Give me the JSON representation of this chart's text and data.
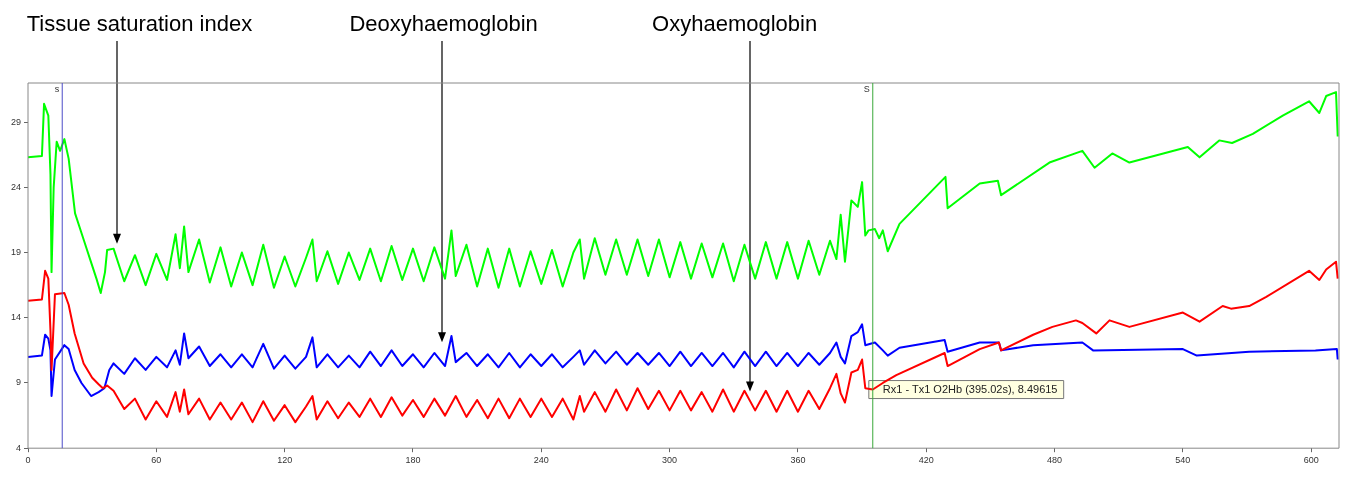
{
  "chart_data": {
    "type": "line",
    "xlim": [
      0,
      613
    ],
    "ylim": [
      4,
      32
    ],
    "xticks": [
      0,
      60,
      120,
      180,
      240,
      300,
      360,
      420,
      480,
      540,
      600
    ],
    "yticks": [
      4,
      9,
      14,
      19,
      24,
      29
    ],
    "series": [
      {
        "color": "#00ff00",
        "x": [
          0,
          6.5,
          7.5,
          9.5,
          10.5,
          11,
          12,
          13.4,
          15,
          17,
          19,
          22,
          26,
          29,
          32,
          34,
          36,
          37,
          40,
          45,
          50,
          55,
          60,
          65,
          69,
          71,
          73,
          75,
          80,
          85,
          90,
          95,
          100,
          105,
          110,
          115,
          120,
          125,
          130,
          133,
          135,
          140,
          145,
          150,
          155,
          160,
          165,
          170,
          175,
          180,
          185,
          190,
          195,
          198,
          200,
          205,
          210,
          215,
          220,
          225,
          230,
          235,
          240,
          245,
          250,
          255,
          258,
          260,
          265,
          270,
          275,
          280,
          285,
          290,
          295,
          300,
          305,
          310,
          315,
          320,
          325,
          330,
          335,
          340,
          345,
          350,
          355,
          360,
          365,
          370,
          375,
          378,
          380,
          382,
          385,
          388,
          390,
          391.5,
          393,
          396,
          398,
          399.7,
          402,
          407.5,
          429,
          430,
          445,
          453.5,
          455,
          477.6,
          493,
          498.7,
          507,
          515,
          542.3,
          547.8,
          557,
          563,
          572.7,
          586.7,
          599,
          603.8,
          607,
          611.6,
          612.4
        ],
        "values": [
          26.3,
          26.4,
          30.4,
          29.5,
          25,
          17.5,
          24,
          27.5,
          26.8,
          27.7,
          26.2,
          22.0,
          20.0,
          18.5,
          17.0,
          15.9,
          17.5,
          19.2,
          19.3,
          16.8,
          18.8,
          16.5,
          18.9,
          16.9,
          20.4,
          17.8,
          21.0,
          17.5,
          20.0,
          16.7,
          19.4,
          16.4,
          19.0,
          16.5,
          19.6,
          16.3,
          18.7,
          16.4,
          18.6,
          20.0,
          16.8,
          19.1,
          16.6,
          19.0,
          16.9,
          19.3,
          16.8,
          19.5,
          16.9,
          19.3,
          16.8,
          19.4,
          17.0,
          20.7,
          17.2,
          19.6,
          16.4,
          19.3,
          16.3,
          19.3,
          16.4,
          19.1,
          16.6,
          19.2,
          16.4,
          19.0,
          20.0,
          17.0,
          20.1,
          17.3,
          20.0,
          17.3,
          20.0,
          17.2,
          20.0,
          17.1,
          19.8,
          17.0,
          19.7,
          17.1,
          19.7,
          16.8,
          19.6,
          17.0,
          19.8,
          17.0,
          19.8,
          17.0,
          19.9,
          17.3,
          19.9,
          18.5,
          21.9,
          18.3,
          23.0,
          22.5,
          24.4,
          20.3,
          20.7,
          20.8,
          20.1,
          20.7,
          19.1,
          21.2,
          24.8,
          22.4,
          24.3,
          24.5,
          23.4,
          25.9,
          26.8,
          25.5,
          26.6,
          25.9,
          27.1,
          26.3,
          27.6,
          27.4,
          28.1,
          29.5,
          30.6,
          29.7,
          31.0,
          31.3,
          27.9
        ]
      },
      {
        "color": "#ff0000",
        "x": [
          0,
          6.5,
          8,
          9.5,
          10.5,
          11,
          12.6,
          17,
          19,
          21.8,
          26,
          30,
          33,
          35,
          37,
          40,
          45,
          50,
          55,
          60,
          65,
          69,
          71,
          73,
          75,
          80,
          85,
          90,
          95,
          100,
          105,
          110,
          115,
          120,
          125,
          130,
          133,
          135,
          140,
          145,
          150,
          155,
          160,
          165,
          170,
          175,
          180,
          185,
          190,
          195,
          200,
          205,
          210,
          215,
          220,
          225,
          230,
          235,
          240,
          245,
          250,
          255,
          258,
          260,
          265,
          270,
          275,
          280,
          285,
          290,
          295,
          300,
          305,
          310,
          315,
          320,
          325,
          330,
          335,
          340,
          345,
          350,
          355,
          360,
          365,
          370,
          375,
          378,
          380,
          382,
          385,
          388,
          390,
          391.5,
          395,
          399.7,
          406,
          428.6,
          430,
          445,
          454,
          455,
          470,
          479,
          490,
          493,
          499.5,
          505.7,
          515,
          540,
          547.8,
          558.6,
          562.5,
          571,
          579,
          599,
          603.8,
          607,
          611.6,
          612.4
        ],
        "values": [
          15.3,
          15.4,
          17.6,
          17.0,
          13.0,
          10.0,
          15.8,
          15.9,
          15.0,
          12.8,
          10.5,
          9.4,
          8.9,
          8.6,
          8.8,
          8.4,
          7.0,
          7.8,
          6.2,
          7.6,
          6.4,
          8.3,
          6.8,
          8.5,
          6.6,
          7.8,
          6.2,
          7.5,
          6.2,
          7.5,
          6.0,
          7.6,
          6.1,
          7.3,
          6.0,
          7.2,
          8.0,
          6.2,
          7.6,
          6.3,
          7.5,
          6.4,
          7.8,
          6.4,
          7.9,
          6.5,
          7.7,
          6.4,
          7.8,
          6.5,
          8.0,
          6.4,
          7.7,
          6.3,
          7.8,
          6.3,
          7.8,
          6.4,
          7.8,
          6.4,
          7.8,
          6.2,
          8.0,
          6.8,
          8.3,
          6.8,
          8.5,
          6.9,
          8.6,
          7.0,
          8.4,
          6.9,
          8.4,
          6.9,
          8.3,
          6.8,
          8.5,
          6.8,
          8.4,
          6.9,
          8.4,
          6.8,
          8.4,
          6.8,
          8.4,
          7.0,
          8.6,
          9.7,
          8.2,
          7.5,
          9.8,
          10.0,
          10.8,
          8.6,
          8.5,
          9.0,
          9.6,
          11.3,
          10.3,
          11.6,
          12.1,
          11.5,
          12.7,
          13.3,
          13.8,
          13.6,
          12.8,
          13.8,
          13.3,
          14.4,
          13.7,
          14.9,
          14.7,
          14.9,
          15.6,
          17.6,
          16.9,
          17.7,
          18.3,
          17.0
        ]
      },
      {
        "color": "#0000ff",
        "x": [
          0,
          6.5,
          8,
          9.5,
          10.5,
          11,
          12.6,
          17,
          19,
          21.8,
          25,
          29.5,
          33,
          35.7,
          38,
          40,
          45,
          50,
          55,
          60,
          65,
          69,
          71,
          73,
          75,
          80,
          85,
          90,
          95,
          100,
          105,
          110,
          115,
          120,
          125,
          130,
          133,
          135,
          140,
          145,
          150,
          155,
          160,
          165,
          170,
          175,
          180,
          185,
          190,
          195,
          198,
          200,
          205,
          210,
          215,
          220,
          225,
          230,
          235,
          240,
          245,
          250,
          255,
          258,
          260,
          265,
          270,
          275,
          280,
          285,
          290,
          295,
          300,
          305,
          310,
          315,
          320,
          325,
          330,
          335,
          340,
          345,
          350,
          355,
          360,
          365,
          370,
          375,
          378,
          380,
          382,
          385,
          388,
          390,
          391.5,
          396,
          399.7,
          402,
          407.5,
          428.6,
          430,
          445,
          454,
          455,
          470,
          493,
          498,
          540,
          546.5,
          571,
          602,
          612,
          612.4
        ],
        "values": [
          11.0,
          11.1,
          12.7,
          12.4,
          11.5,
          8.0,
          10.8,
          11.9,
          11.6,
          10.0,
          9.0,
          8.0,
          8.3,
          8.6,
          10.0,
          10.5,
          9.7,
          10.9,
          10.0,
          11.0,
          10.2,
          11.5,
          10.4,
          12.8,
          10.9,
          11.8,
          10.3,
          11.2,
          10.2,
          11.2,
          10.2,
          12.0,
          10.1,
          11.1,
          10.1,
          11.0,
          12.5,
          10.2,
          11.2,
          10.2,
          11.1,
          10.2,
          11.4,
          10.3,
          11.5,
          10.3,
          11.2,
          10.2,
          11.3,
          10.3,
          12.6,
          10.6,
          11.3,
          10.3,
          11.2,
          10.2,
          11.3,
          10.2,
          11.2,
          10.3,
          11.2,
          10.2,
          11.0,
          11.5,
          10.4,
          11.5,
          10.5,
          11.4,
          10.4,
          11.3,
          10.4,
          11.3,
          10.3,
          11.4,
          10.3,
          11.3,
          10.3,
          11.3,
          10.2,
          11.4,
          10.3,
          11.4,
          10.3,
          11.3,
          10.3,
          11.3,
          10.4,
          11.3,
          12.1,
          11.0,
          10.5,
          12.6,
          12.9,
          13.5,
          11.9,
          12.1,
          11.5,
          11.1,
          11.7,
          12.3,
          11.4,
          12.1,
          12.1,
          11.5,
          11.9,
          12.1,
          11.5,
          11.6,
          11.1,
          11.4,
          11.5,
          11.6,
          10.8
        ]
      }
    ],
    "ref_lines": [
      {
        "axis": "x",
        "value": 16,
        "label": "s",
        "color": "#4b4bc8"
      },
      {
        "axis": "x",
        "value": 395,
        "label": "S",
        "color": "#3aa83a"
      }
    ],
    "annotations": [
      "Tissue saturation index",
      "Deoxyhaemoglobin",
      "Oxyhaemoglobin",
      {
        "text": "Rx1 - Tx1 O2Hb (395.02s), 8.49615",
        "x": 395.02,
        "y": 8.49615
      }
    ]
  }
}
